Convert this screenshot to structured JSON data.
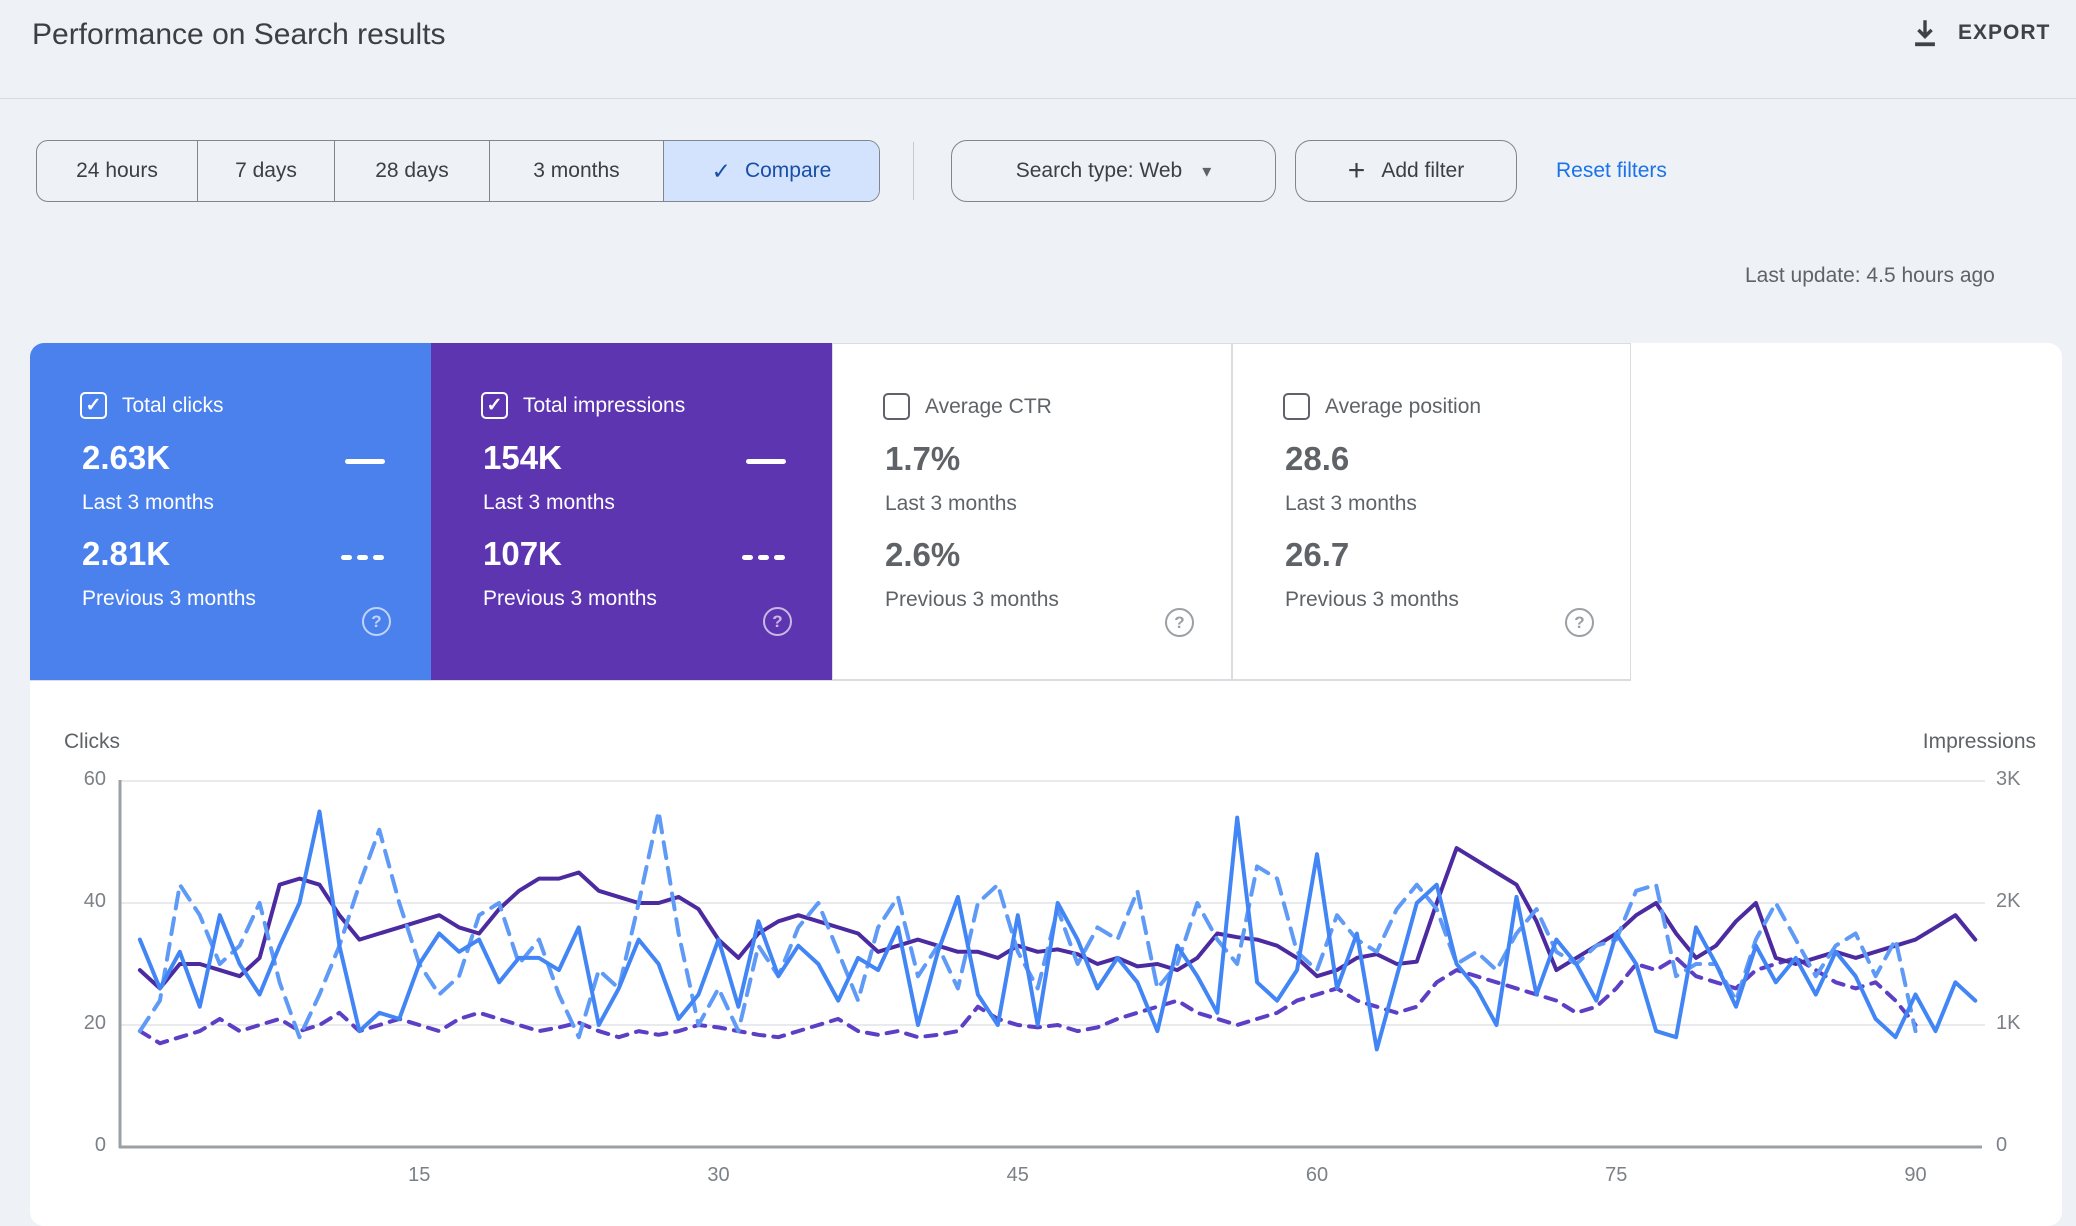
{
  "header": {
    "title": "Performance on Search results",
    "export_label": "EXPORT"
  },
  "toolbar": {
    "date_ranges": [
      "24 hours",
      "7 days",
      "28 days",
      "3 months"
    ],
    "compare_label": "Compare",
    "search_type_label": "Search type: Web",
    "add_filter_label": "Add filter",
    "reset_filters_label": "Reset filters"
  },
  "status": {
    "last_update": "Last update: 4.5 hours ago"
  },
  "icons": {
    "check": "✓",
    "help": "?",
    "caret": "▾",
    "plus": "+"
  },
  "colors": {
    "clicks_card_bg": "#4b81ed",
    "impressions_card_bg": "#5e35b1",
    "clicks_line": "#4285f4",
    "clicks_prev_line": "#5f9af6",
    "impressions_line": "#4c2aa0",
    "impressions_prev_line": "#5d3fc5",
    "selected_chip_bg": "#d3e3fd",
    "link_blue": "#1a73e8"
  },
  "cards": [
    {
      "label": "Total clicks",
      "checked": true,
      "bg": "#4b81ed",
      "current": "2.63K",
      "current_period": "Last 3 months",
      "previous": "2.81K",
      "previous_period": "Previous 3 months"
    },
    {
      "label": "Total impressions",
      "checked": true,
      "bg": "#5e35b1",
      "current": "154K",
      "current_period": "Last 3 months",
      "previous": "107K",
      "previous_period": "Previous 3 months"
    },
    {
      "label": "Average CTR",
      "checked": false,
      "bg": "",
      "current": "1.7%",
      "current_period": "Last 3 months",
      "previous": "2.6%",
      "previous_period": "Previous 3 months"
    },
    {
      "label": "Average position",
      "checked": false,
      "bg": "",
      "current": "28.6",
      "current_period": "Last 3 months",
      "previous": "26.7",
      "previous_period": "Previous 3 months"
    }
  ],
  "chart_data": {
    "type": "line",
    "left_axis_title": "Clicks",
    "right_axis_title": "Impressions",
    "grid": true,
    "x_axis": {
      "unit": "day",
      "ticks": [
        15,
        30,
        45,
        60,
        75,
        90
      ]
    },
    "clicks_axis": {
      "max": 60,
      "ticks": [
        60,
        40,
        20,
        0
      ]
    },
    "impressions_axis": {
      "max_k": 3,
      "tick_labels": [
        "3K",
        "2K",
        "1K",
        "0"
      ],
      "tick_values_k": [
        3,
        2,
        1,
        0
      ]
    },
    "series": [
      {
        "name": "Total impressions — Previous 3 months",
        "axis": "impressions",
        "style": "dashed",
        "color": "#5d3fc5",
        "unit": "K",
        "values": [
          0.95,
          0.85,
          0.9,
          0.95,
          1.05,
          0.95,
          1.0,
          1.05,
          0.95,
          1.0,
          1.1,
          0.95,
          1.0,
          1.05,
          1.0,
          0.95,
          1.05,
          1.1,
          1.05,
          1.0,
          0.95,
          0.98,
          1.02,
          0.95,
          0.9,
          0.95,
          0.92,
          0.95,
          1.0,
          0.98,
          0.95,
          0.92,
          0.9,
          0.95,
          1.0,
          1.05,
          0.95,
          0.92,
          0.95,
          0.9,
          0.92,
          0.95,
          1.15,
          1.05,
          1.0,
          0.98,
          1.0,
          0.95,
          0.98,
          1.05,
          1.1,
          1.15,
          1.2,
          1.1,
          1.05,
          1.0,
          1.05,
          1.1,
          1.2,
          1.25,
          1.3,
          1.2,
          1.15,
          1.1,
          1.15,
          1.35,
          1.45,
          1.4,
          1.35,
          1.3,
          1.25,
          1.2,
          1.1,
          1.15,
          1.3,
          1.5,
          1.45,
          1.55,
          1.4,
          1.35,
          1.3,
          1.45,
          1.5,
          1.55,
          1.45,
          1.35,
          1.3,
          1.35,
          1.2,
          1.0
        ]
      },
      {
        "name": "Total impressions — Last 3 months",
        "axis": "impressions",
        "style": "solid",
        "color": "#4c2aa0",
        "unit": "K",
        "values": [
          1.45,
          1.3,
          1.5,
          1.5,
          1.45,
          1.4,
          1.55,
          2.15,
          2.2,
          2.15,
          1.9,
          1.7,
          1.75,
          1.8,
          1.85,
          1.9,
          1.8,
          1.75,
          1.95,
          2.1,
          2.2,
          2.2,
          2.25,
          2.1,
          2.05,
          2.0,
          2.0,
          2.05,
          1.95,
          1.7,
          1.55,
          1.75,
          1.85,
          1.9,
          1.85,
          1.8,
          1.75,
          1.6,
          1.65,
          1.7,
          1.65,
          1.6,
          1.6,
          1.55,
          1.65,
          1.6,
          1.62,
          1.58,
          1.5,
          1.55,
          1.48,
          1.5,
          1.45,
          1.55,
          1.75,
          1.72,
          1.7,
          1.65,
          1.55,
          1.4,
          1.45,
          1.55,
          1.58,
          1.5,
          1.52,
          2.0,
          2.45,
          2.35,
          2.25,
          2.15,
          1.85,
          1.45,
          1.55,
          1.65,
          1.75,
          1.9,
          2.0,
          1.75,
          1.55,
          1.65,
          1.85,
          2.0,
          1.55,
          1.5,
          1.55,
          1.6,
          1.55,
          1.6,
          1.65,
          1.7,
          1.8,
          1.9,
          1.7
        ]
      },
      {
        "name": "Total clicks — Previous 3 months",
        "axis": "clicks",
        "style": "dashed",
        "color": "#5f9af6",
        "unit": "clicks",
        "values": [
          19,
          24,
          43,
          38,
          30,
          33,
          40,
          27,
          18,
          25,
          33,
          43,
          52,
          40,
          30,
          25,
          28,
          38,
          40,
          30,
          34,
          25,
          18,
          29,
          26,
          40,
          55,
          35,
          20,
          26,
          19,
          33,
          28,
          36,
          40,
          32,
          24,
          36,
          41,
          28,
          33,
          26,
          40,
          43,
          32,
          26,
          39,
          30,
          36,
          34,
          42,
          26,
          30,
          40,
          34,
          30,
          46,
          44,
          32,
          29,
          38,
          34,
          32,
          39,
          43,
          39,
          30,
          32,
          29,
          35,
          39,
          32,
          30,
          33,
          34,
          42,
          43,
          28,
          30,
          30,
          24,
          34,
          40,
          34,
          28,
          33,
          35,
          28,
          34,
          19
        ]
      },
      {
        "name": "Total clicks — Last 3 months",
        "axis": "clicks",
        "style": "solid",
        "color": "#4285f4",
        "unit": "clicks",
        "values": [
          34,
          26,
          32,
          23,
          38,
          30,
          25,
          33,
          40,
          55,
          33,
          19,
          22,
          21,
          30,
          35,
          32,
          34,
          27,
          31,
          31,
          29,
          36,
          20,
          26,
          34,
          30,
          21,
          25,
          34,
          23,
          37,
          28,
          33,
          30,
          24,
          31,
          29,
          36,
          20,
          32,
          41,
          25,
          20,
          38,
          20,
          40,
          34,
          26,
          31,
          27,
          19,
          33,
          28,
          22,
          54,
          27,
          24,
          29,
          48,
          26,
          35,
          16,
          28,
          40,
          43,
          30,
          26,
          20,
          41,
          25,
          34,
          30,
          24,
          35,
          30,
          19,
          18,
          36,
          30,
          23,
          33,
          27,
          31,
          25,
          32,
          28,
          21,
          18,
          25,
          19,
          27,
          24
        ]
      }
    ]
  }
}
